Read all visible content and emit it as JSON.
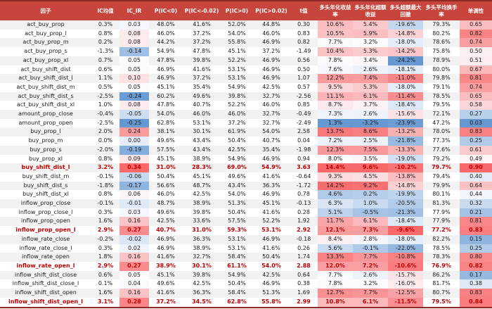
{
  "chart_data": {
    "type": "table",
    "columns": [
      {
        "key": "factor",
        "label": "因子"
      },
      {
        "key": "ic_mean",
        "label": "IC均值"
      },
      {
        "key": "ic_ir",
        "label": "IC_IR"
      },
      {
        "key": "p_lt0",
        "label": "P(IC<0)"
      },
      {
        "key": "p_ltm002",
        "label": "P(IC<-0.02)"
      },
      {
        "key": "p_gt0",
        "label": "P(IC>0)"
      },
      {
        "key": "p_gt002",
        "label": "P(IC>0.02)"
      },
      {
        "key": "t",
        "label": "t值"
      },
      {
        "key": "long_ret",
        "label": "多头年化收益率"
      },
      {
        "key": "long_excess",
        "label": "多头年化超额收益"
      },
      {
        "key": "max_dd",
        "label": "多头超额最大回撤"
      },
      {
        "key": "turnover",
        "label": "多头平均换手率"
      },
      {
        "key": "mono",
        "label": "单调性"
      }
    ],
    "rows": [
      {
        "factor": "act_buy_prop",
        "ic_mean": "0.3%",
        "ic_ir": "0.03",
        "p_lt0": "48.0%",
        "p_ltm002": "41.6%",
        "p_gt0": "52.0%",
        "p_gt002": "44.8%",
        "t": "0.30",
        "long_ret": "10.6%",
        "long_excess": "5.4%",
        "max_dd": "-19.6%",
        "turnover": "79.3%",
        "mono": "0.65"
      },
      {
        "factor": "act_buy_prop_l",
        "ic_mean": "0.8%",
        "ic_ir": "0.08",
        "p_lt0": "46.0%",
        "p_ltm002": "37.2%",
        "p_gt0": "54.0%",
        "p_gt002": "46.0%",
        "t": "0.83",
        "long_ret": "10.5%",
        "long_excess": "5.9%",
        "max_dd": "-14.8%",
        "turnover": "80.2%",
        "mono": "0.82"
      },
      {
        "factor": "act_buy_prop_m",
        "ic_mean": "0.2%",
        "ic_ir": "0.08",
        "p_lt0": "44.2%",
        "p_ltm002": "37.2%",
        "p_gt0": "55.8%",
        "p_gt002": "46.9%",
        "t": "0.82",
        "long_ret": "7.7%",
        "long_excess": "3.2%",
        "max_dd": "-18.0%",
        "turnover": "78.6%",
        "mono": "0.74"
      },
      {
        "factor": "act_buy_prop_s",
        "ic_mean": "-1.3%",
        "ic_ir": "-0.14",
        "p_lt0": "54.9%",
        "p_ltm002": "47.8%",
        "p_gt0": "45.1%",
        "p_gt002": "37.2%",
        "t": "-1.49",
        "long_ret": "10.4%",
        "long_excess": "5.3%",
        "max_dd": "-14.2%",
        "turnover": "75.8%",
        "mono": "0.50"
      },
      {
        "factor": "act_buy_prop_xl",
        "ic_mean": "0.7%",
        "ic_ir": "0.05",
        "p_lt0": "47.8%",
        "p_ltm002": "39.8%",
        "p_gt0": "52.2%",
        "p_gt002": "46.9%",
        "t": "0.56",
        "long_ret": "7.8%",
        "long_excess": "3.4%",
        "max_dd": "-24.2%",
        "turnover": "78.9%",
        "mono": "0.51"
      },
      {
        "factor": "act_buy_shift_dist",
        "ic_mean": "0.6%",
        "ic_ir": "0.05",
        "p_lt0": "46.9%",
        "p_ltm002": "41.6%",
        "p_gt0": "53.1%",
        "p_gt002": "46.9%",
        "t": "0.50",
        "long_ret": "7.6%",
        "long_excess": "2.6%",
        "max_dd": "-18.1%",
        "turnover": "80.0%",
        "mono": "0.67"
      },
      {
        "factor": "act_buy_shift_dist_l",
        "ic_mean": "1.1%",
        "ic_ir": "0.10",
        "p_lt0": "46.9%",
        "p_ltm002": "37.2%",
        "p_gt0": "53.1%",
        "p_gt002": "46.9%",
        "t": "1.07",
        "long_ret": "12.2%",
        "long_excess": "7.4%",
        "max_dd": "-11.0%",
        "turnover": "79.8%",
        "mono": "0.81"
      },
      {
        "factor": "act_buy_shift_dist_m",
        "ic_mean": "0.5%",
        "ic_ir": "0.05",
        "p_lt0": "45.1%",
        "p_ltm002": "35.4%",
        "p_gt0": "54.9%",
        "p_gt002": "42.5%",
        "t": "0.57",
        "long_ret": "9.5%",
        "long_excess": "5.3%",
        "max_dd": "-18.0%",
        "turnover": "79.1%",
        "mono": "0.74"
      },
      {
        "factor": "act_buy_shift_dist_s",
        "ic_mean": "-2.5%",
        "ic_ir": "-0.24",
        "p_lt0": "60.2%",
        "p_ltm002": "49.6%",
        "p_gt0": "39.8%",
        "p_gt002": "32.7%",
        "t": "-2.56",
        "long_ret": "11.1%",
        "long_excess": "6.1%",
        "max_dd": "-11.4%",
        "turnover": "78.5%",
        "mono": "0.65"
      },
      {
        "factor": "act_buy_shift_dist_xl",
        "ic_mean": "1.0%",
        "ic_ir": "0.08",
        "p_lt0": "47.8%",
        "p_ltm002": "40.7%",
        "p_gt0": "52.2%",
        "p_gt002": "46.0%",
        "t": "0.85",
        "long_ret": "8.7%",
        "long_excess": "3.7%",
        "max_dd": "-18.4%",
        "turnover": "79.5%",
        "mono": "0.58"
      },
      {
        "factor": "amount_prop_close",
        "ic_mean": "-0.4%",
        "ic_ir": "-0.05",
        "p_lt0": "54.0%",
        "p_ltm002": "46.0%",
        "p_gt0": "46.0%",
        "p_gt002": "32.7%",
        "t": "-0.49",
        "long_ret": "7.3%",
        "long_excess": "2.6%",
        "max_dd": "-15.6%",
        "turnover": "72.1%",
        "mono": "0.27"
      },
      {
        "factor": "amount_prop_open",
        "ic_mean": "-2.5%",
        "ic_ir": "-0.25",
        "p_lt0": "62.8%",
        "p_ltm002": "53.1%",
        "p_gt0": "37.2%",
        "p_gt002": "32.7%",
        "t": "-2.49",
        "long_ret": "1.3%",
        "long_excess": "-3.2%",
        "max_dd": "-23.9%",
        "turnover": "47.2%",
        "mono": "0.03"
      },
      {
        "factor": "buy_prop_l",
        "ic_mean": "2.0%",
        "ic_ir": "0.24",
        "p_lt0": "38.1%",
        "p_ltm002": "30.1%",
        "p_gt0": "61.9%",
        "p_gt002": "54.0%",
        "t": "2.58",
        "long_ret": "13.7%",
        "long_excess": "8.6%",
        "max_dd": "-13.2%",
        "turnover": "78.0%",
        "mono": "0.83"
      },
      {
        "factor": "buy_prop_m",
        "ic_mean": "0.0%",
        "ic_ir": "0.00",
        "p_lt0": "49.6%",
        "p_ltm002": "43.4%",
        "p_gt0": "50.4%",
        "p_gt002": "40.7%",
        "t": "0.04",
        "long_ret": "7.2%",
        "long_excess": "2.5%",
        "max_dd": "-21.8%",
        "turnover": "77.3%",
        "mono": "0.25"
      },
      {
        "factor": "buy_prop_s",
        "ic_mean": "-2.0%",
        "ic_ir": "-0.19",
        "p_lt0": "57.5%",
        "p_ltm002": "43.4%",
        "p_gt0": "42.5%",
        "p_gt002": "35.4%",
        "t": "-1.98",
        "long_ret": "12.3%",
        "long_excess": "7.5%",
        "max_dd": "-13.3%",
        "turnover": "77.6%",
        "mono": "0.61"
      },
      {
        "factor": "buy_prop_xl",
        "ic_mean": "0.8%",
        "ic_ir": "0.09",
        "p_lt0": "45.1%",
        "p_ltm002": "38.9%",
        "p_gt0": "54.9%",
        "p_gt002": "46.9%",
        "t": "0.94",
        "long_ret": "8.0%",
        "long_excess": "3.5%",
        "max_dd": "-19.0%",
        "turnover": "79.2%",
        "mono": "0.49"
      },
      {
        "factor": "buy_shift_dist_l",
        "ic_mean": "3.2%",
        "ic_ir": "0.34",
        "p_lt0": "31.0%",
        "p_ltm002": "28.3%",
        "p_gt0": "69.0%",
        "p_gt002": "54.9%",
        "t": "3.63",
        "long_ret": "14.4%",
        "long_excess": "9.6%",
        "max_dd": "-10.2%",
        "turnover": "79.7%",
        "mono": "0.90"
      },
      {
        "factor": "buy_shift_dist_m",
        "ic_mean": "-0.1%",
        "ic_ir": "-0.06",
        "p_lt0": "50.4%",
        "p_ltm002": "45.1%",
        "p_gt0": "49.6%",
        "p_gt002": "41.6%",
        "t": "-0.64",
        "long_ret": "9.3%",
        "long_excess": "4.5%",
        "max_dd": "-13.8%",
        "turnover": "79.4%",
        "mono": "0.40"
      },
      {
        "factor": "buy_shift_dist_s",
        "ic_mean": "-1.8%",
        "ic_ir": "-0.17",
        "p_lt0": "56.6%",
        "p_ltm002": "48.7%",
        "p_gt0": "43.4%",
        "p_gt002": "36.3%",
        "t": "-1.72",
        "long_ret": "14.2%",
        "long_excess": "9.2%",
        "max_dd": "-14.8%",
        "turnover": "79.9%",
        "mono": "0.64"
      },
      {
        "factor": "buy_shift_dist_xl",
        "ic_mean": "0.8%",
        "ic_ir": "0.06",
        "p_lt0": "46.0%",
        "p_ltm002": "42.5%",
        "p_gt0": "54.0%",
        "p_gt002": "46.9%",
        "t": "0.78",
        "long_ret": "4.6%",
        "long_excess": "0.2%",
        "max_dd": "-19.9%",
        "turnover": "80.1%",
        "mono": "0.44"
      },
      {
        "factor": "inflow_prop_close",
        "ic_mean": "-0.1%",
        "ic_ir": "-0.01",
        "p_lt0": "48.7%",
        "p_ltm002": "38.9%",
        "p_gt0": "51.3%",
        "p_gt002": "45.1%",
        "t": "-0.13",
        "long_ret": "6.3%",
        "long_excess": "1.0%",
        "max_dd": "-20.5%",
        "turnover": "81.3%",
        "mono": "0.32"
      },
      {
        "factor": "inflow_prop_close_l",
        "ic_mean": "0.3%",
        "ic_ir": "0.03",
        "p_lt0": "49.6%",
        "p_ltm002": "39.8%",
        "p_gt0": "50.4%",
        "p_gt002": "41.6%",
        "t": "0.28",
        "long_ret": "5.1%",
        "long_excess": "-0.5%",
        "max_dd": "-21.3%",
        "turnover": "77.9%",
        "mono": "0.21"
      },
      {
        "factor": "inflow_prop_open",
        "ic_mean": "1.6%",
        "ic_ir": "0.16",
        "p_lt0": "42.5%",
        "p_ltm002": "33.6%",
        "p_gt0": "57.5%",
        "p_gt002": "52.2%",
        "t": "1.92",
        "long_ret": "11.7%",
        "long_excess": "6.1%",
        "max_dd": "-18.4%",
        "turnover": "77.9%",
        "mono": "0.81"
      },
      {
        "factor": "inflow_prop_open_l",
        "ic_mean": "2.9%",
        "ic_ir": "0.27",
        "p_lt0": "40.7%",
        "p_ltm002": "31.0%",
        "p_gt0": "59.3%",
        "p_gt002": "53.1%",
        "t": "2.92",
        "long_ret": "12.1%",
        "long_excess": "7.3%",
        "max_dd": "-9.6%",
        "turnover": "77.2%",
        "mono": "0.83"
      },
      {
        "factor": "inflow_rate_close",
        "ic_mean": "-0.2%",
        "ic_ir": "-0.02",
        "p_lt0": "46.9%",
        "p_ltm002": "36.3%",
        "p_gt0": "53.1%",
        "p_gt002": "46.9%",
        "t": "-0.18",
        "long_ret": "8.4%",
        "long_excess": "2.8%",
        "max_dd": "-18.0%",
        "turnover": "82.2%",
        "mono": "0.15"
      },
      {
        "factor": "inflow_rate_close_l",
        "ic_mean": "0.3%",
        "ic_ir": "0.02",
        "p_lt0": "46.9%",
        "p_ltm002": "38.9%",
        "p_gt0": "53.1%",
        "p_gt002": "41.6%",
        "t": "0.26",
        "long_ret": "5.6%",
        "long_excess": "-0.1%",
        "max_dd": "-22.0%",
        "turnover": "78.5%",
        "mono": "0.25"
      },
      {
        "factor": "inflow_rate_open",
        "ic_mean": "1.8%",
        "ic_ir": "0.16",
        "p_lt0": "41.6%",
        "p_ltm002": "32.7%",
        "p_gt0": "58.4%",
        "p_gt002": "50.4%",
        "t": "1.74",
        "long_ret": "13.3%",
        "long_excess": "7.7%",
        "max_dd": "-10.8%",
        "turnover": "78.3%",
        "mono": "0.80"
      },
      {
        "factor": "inflow_rate_open_l",
        "ic_mean": "2.9%",
        "ic_ir": "0.27",
        "p_lt0": "38.9%",
        "p_ltm002": "30.1%",
        "p_gt0": "61.1%",
        "p_gt002": "54.0%",
        "t": "2.88",
        "long_ret": "12.0%",
        "long_excess": "7.2%",
        "max_dd": "-10.6%",
        "turnover": "76.9%",
        "mono": "0.82"
      },
      {
        "factor": "inflow_shift_dist_close",
        "ic_mean": "0.6%",
        "ic_ir": "0.05",
        "p_lt0": "45.1%",
        "p_ltm002": "39.8%",
        "p_gt0": "54.9%",
        "p_gt002": "42.5%",
        "t": "0.64",
        "long_ret": "7.7%",
        "long_excess": "2.6%",
        "max_dd": "-15.7%",
        "turnover": "86.2%",
        "mono": "0.17"
      },
      {
        "factor": "inflow_shift_dist_close_l",
        "ic_mean": "0.1%",
        "ic_ir": "0.04",
        "p_lt0": "49.6%",
        "p_ltm002": "42.5%",
        "p_gt0": "50.4%",
        "p_gt002": "46.9%",
        "t": "0.38",
        "long_ret": "7.8%",
        "long_excess": "3.2%",
        "max_dd": "-16.0%",
        "turnover": "81.7%",
        "mono": "0.38"
      },
      {
        "factor": "inflow_shift_dist_open",
        "ic_mean": "1.6%",
        "ic_ir": "0.16",
        "p_lt0": "41.6%",
        "p_ltm002": "36.3%",
        "p_gt0": "58.4%",
        "p_gt002": "51.3%",
        "t": "1.69",
        "long_ret": "12.7%",
        "long_excess": "7.7%",
        "max_dd": "-12.5%",
        "turnover": "80.7%",
        "mono": "0.83"
      },
      {
        "factor": "inflow_shift_dist_open_l",
        "ic_mean": "3.1%",
        "ic_ir": "0.28",
        "p_lt0": "37.2%",
        "p_ltm002": "34.5%",
        "p_gt0": "62.8%",
        "p_gt002": "55.8%",
        "t": "2.99",
        "long_ret": "10.8%",
        "long_excess": "6.1%",
        "max_dd": "-11.5%",
        "turnover": "79.5%",
        "mono": "0.84"
      }
    ],
    "highlighted_factors": [
      "buy_shift_dist_l",
      "inflow_prop_open_l",
      "inflow_rate_open_l",
      "inflow_shift_dist_open_l"
    ],
    "heatmap_columns": [
      "ic_ir",
      "long_ret",
      "long_excess",
      "max_dd",
      "mono"
    ],
    "layout": {
      "grid": false,
      "striped_rows": true
    },
    "colors": {
      "header_bg": "#C7453C",
      "header_text": "#FFFFFF",
      "stripe": "#F2F2F2",
      "row_bg": "#FFFFFF",
      "text": "#1A1A1A",
      "highlight_text": "#C00000",
      "border": "#8E2A23",
      "scale_low": "#6699D2",
      "scale_mid": "#FCFCFF",
      "scale_high": "#F8696B"
    }
  }
}
